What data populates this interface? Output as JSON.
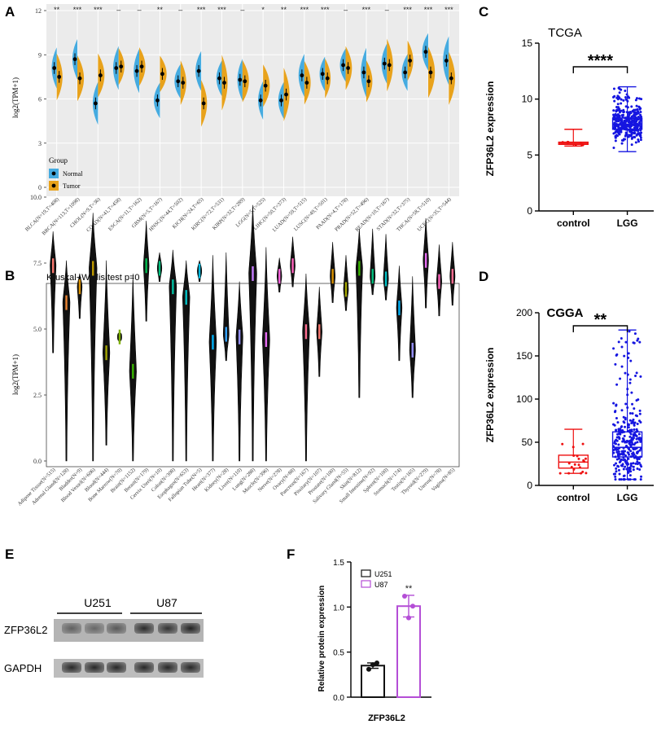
{
  "panels": {
    "a": {
      "letter": "A",
      "ylabel": "log2(TPM+1)",
      "yticks": [
        0,
        3,
        6,
        9,
        12
      ],
      "ylim": [
        0,
        12
      ],
      "legend": {
        "title": "Group",
        "items": [
          "Normal",
          "Tumor"
        ],
        "colors": [
          "#45abe0",
          "#e8a21b"
        ]
      },
      "categories": [
        "BLCA(N=19,T=408)",
        "BRCA(N=113,T=1098)",
        "CHOL(N=9,T=36)",
        "COAD(N=41,T=458)",
        "ESCA(N=11,T=162)",
        "GBM(N=5,T=167)",
        "HNSC(N=44,T=502)",
        "KICH(N=24,T=65)",
        "KIRC(N=72,T=531)",
        "KIRP(N=32,T=289)",
        "LGG(N=5,T=525)",
        "LIHC(N=50,T=373)",
        "LUAD(N=59,T=515)",
        "LUSC(N=49,T=501)",
        "PAAD(N=4,T=178)",
        "PRAD(N=52,T=496)",
        "READ(N=10,T=167)",
        "STAD(N=32,T=375)",
        "THCA(N=58,T=510)",
        "UCEC(N=35,T=544)"
      ],
      "normal_median": [
        8.1,
        8.7,
        5.7,
        8.1,
        7.9,
        5.9,
        7.2,
        7.9,
        7.4,
        7.3,
        5.9,
        5.9,
        7.6,
        7.7,
        8.3,
        7.8,
        8.4,
        7.8,
        9.2,
        8.6
      ],
      "tumor_median": [
        7.5,
        7.4,
        7.6,
        8.2,
        8.2,
        7.7,
        7.1,
        5.7,
        7.1,
        7.2,
        6.9,
        6.3,
        7.1,
        7.4,
        8.1,
        7.2,
        8.3,
        8.6,
        7.8,
        7.4
      ],
      "significance": [
        "**",
        "***",
        "***",
        "–",
        "–",
        "**",
        "–",
        "***",
        "***",
        "–",
        "*",
        "**",
        "***",
        "***",
        "–",
        "***",
        "–",
        "***",
        "***",
        "***"
      ]
    },
    "b": {
      "letter": "B",
      "title": "Kruskal−Wallis test p=0",
      "ylabel": "log2(TPM+1)",
      "yticks": [
        "0.0",
        "2.5",
        "5.0",
        "7.5",
        "10.0"
      ],
      "ylim": [
        0,
        10
      ],
      "categories": [
        "Adipose Tissue(N=515)",
        "Adrenal Gland(N=128)",
        "Bladder(N=9)",
        "Blood Vessel(N=606)",
        "Blood(N=444)",
        "Bone Marrow(N=70)",
        "Brain(N=1152)",
        "Breast(N=179)",
        "Cervix Uteri(N=10)",
        "Colon(N=308)",
        "Esophagus(N=653)",
        "Fallopian Tube(N=5)",
        "Heart(N=377)",
        "Kidney(N=28)",
        "Liver(N=110)",
        "Lung(N=288)",
        "Muscle(N=396)",
        "Nerve(N=278)",
        "Ovary(N=88)",
        "Pancreas(N=167)",
        "Pituitary(N=107)",
        "Prostate(N=100)",
        "Salivary Gland(N=55)",
        "Skin(N=812)",
        "Small Intestine(N=92)",
        "Spleen(N=100)",
        "Stomach(N=174)",
        "Testis(N=165)",
        "Thyroid(N=279)",
        "Uterus(N=78)",
        "Vagina(N=85)"
      ],
      "median": [
        7.4,
        6.0,
        6.6,
        7.3,
        4.1,
        4.7,
        3.4,
        7.4,
        7.3,
        6.6,
        6.2,
        7.2,
        4.5,
        4.8,
        4.7,
        7.1,
        4.6,
        7.0,
        7.4,
        4.9,
        4.9,
        7.0,
        6.5,
        7.3,
        7.0,
        6.9,
        5.8,
        4.2,
        7.6,
        6.8,
        7.0
      ],
      "min": [
        4.1,
        0.0,
        5.4,
        0.0,
        0.6,
        4.5,
        0.0,
        5.3,
        6.8,
        0.0,
        0.0,
        6.8,
        0.0,
        3.8,
        0.0,
        0.0,
        0.0,
        6.4,
        6.6,
        0.0,
        3.2,
        6.0,
        5.7,
        2.4,
        6.3,
        6.1,
        3.8,
        2.4,
        5.8,
        5.5,
        5.9
      ],
      "max": [
        8.7,
        7.6,
        7.1,
        9.4,
        7.6,
        4.9,
        7.1,
        9.1,
        7.9,
        8.0,
        7.6,
        7.6,
        7.8,
        7.9,
        6.8,
        9.7,
        8.1,
        7.7,
        8.5,
        7.1,
        6.6,
        8.3,
        7.8,
        8.8,
        8.8,
        8.6,
        7.4,
        7.0,
        9.2,
        8.2,
        8.3
      ],
      "colors": [
        "#f8766d",
        "#ea8331",
        "#d89000",
        "#c09b00",
        "#a3a500",
        "#7cae00",
        "#39b600",
        "#00bb4e",
        "#00bf7d",
        "#00c1a3",
        "#00bfc4",
        "#00bae0",
        "#00b0f6",
        "#35a2ff",
        "#9590ff",
        "#c77cff",
        "#e76bf3",
        "#fa62db",
        "#ff62bc",
        "#ff6c90",
        "#f8766d",
        "#d89000",
        "#a3a500",
        "#39b600",
        "#00bf7d",
        "#00bfc4",
        "#00b0f6",
        "#9590ff",
        "#e76bf3",
        "#ff62bc",
        "#ff6c90"
      ]
    },
    "c": {
      "letter": "C",
      "title": "TCGA",
      "ylabel": "ZFP36L2 expression",
      "yticks": [
        "0",
        "5",
        "10",
        "15"
      ],
      "ylim": [
        0,
        15
      ],
      "categories": [
        "control",
        "LGG"
      ],
      "sig": "****",
      "colors": [
        "#ee1111",
        "#1515e0"
      ],
      "control": {
        "min": 5.8,
        "q1": 5.95,
        "median": 6.05,
        "q3": 6.15,
        "max": 7.3
      },
      "lgg": {
        "min": 5.3,
        "q1": 7.3,
        "median": 7.75,
        "q3": 8.3,
        "max": 11.1
      }
    },
    "d": {
      "letter": "D",
      "title": "CGGA",
      "ylabel": "ZFP36L2 expression",
      "yticks": [
        "0",
        "50",
        "100",
        "150",
        "200"
      ],
      "ylim": [
        0,
        200
      ],
      "categories": [
        "control",
        "LGG"
      ],
      "sig": "**",
      "colors": [
        "#ee1111",
        "#1515e0"
      ],
      "control": {
        "min": 14,
        "q1": 20,
        "median": 27,
        "q3": 35,
        "max": 65
      },
      "lgg": {
        "min": 7,
        "q1": 33,
        "median": 44,
        "q3": 62,
        "max": 180
      }
    },
    "e": {
      "letter": "E",
      "groups": [
        "U251",
        "U87"
      ],
      "rows": [
        "ZFP36L2",
        "GAPDH"
      ]
    },
    "f": {
      "letter": "F",
      "ylabel": "Relative protein expression",
      "xlabel": "ZFP36L2",
      "yticks": [
        "0.0",
        "0.5",
        "1.0",
        "1.5"
      ],
      "ylim": [
        0,
        1.5
      ],
      "legend": [
        "U251",
        "U87"
      ],
      "colors": [
        "#111111",
        "#b44ed6"
      ],
      "bars": [
        {
          "name": "U251",
          "mean": 0.35,
          "err": 0.03,
          "points": [
            0.31,
            0.38,
            0.36
          ]
        },
        {
          "name": "U87",
          "mean": 1.01,
          "err": 0.12,
          "points": [
            1.12,
            1.01,
            0.88
          ]
        }
      ],
      "sig": "**"
    }
  }
}
